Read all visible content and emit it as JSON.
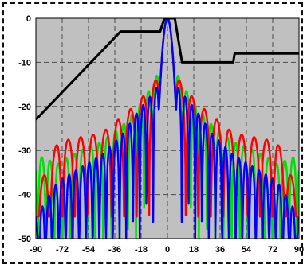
{
  "chart_data": {
    "type": "line",
    "title": "",
    "xlabel": "",
    "ylabel": "",
    "xlim": [
      -90,
      90
    ],
    "ylim": [
      -50,
      0
    ],
    "xticks": [
      -90,
      -72,
      -54,
      -36,
      -18,
      0,
      18,
      36,
      54,
      72,
      90
    ],
    "yticks": [
      0,
      -10,
      -20,
      -30,
      -40,
      -50
    ],
    "xtick_labels": [
      "-90",
      "-72",
      "-54",
      "-36",
      "-18",
      "0",
      "18",
      "36",
      "54",
      "72",
      "90"
    ],
    "ytick_labels": [
      "0",
      "-10",
      "-20",
      "-30",
      "-40",
      "-50"
    ],
    "grid": true,
    "legend": "none",
    "background": "#c0c0c0",
    "series": [
      {
        "color": "#000000",
        "x": [
          -90,
          -32,
          -5,
          -2,
          2,
          5,
          10,
          45,
          46,
          90
        ],
        "y": [
          -23,
          -3,
          -3,
          0,
          0,
          0,
          -10,
          -10,
          -8,
          -8
        ]
      },
      {
        "color": "#00e000",
        "sidelobe_envelope": {
          "x": [
            -90,
            -75,
            -60,
            -45,
            -30,
            -20,
            -10,
            -6,
            0,
            6,
            10,
            20,
            30,
            45,
            60,
            75,
            90
          ],
          "y": [
            -31,
            -33,
            -30,
            -28,
            -24,
            -20,
            -15,
            -12,
            0,
            -12,
            -15,
            -20,
            -24,
            -28,
            -30,
            -33,
            -31
          ]
        },
        "notch_depth_db": -50
      },
      {
        "color": "#ff0000",
        "sidelobe_envelope": {
          "x": [
            -90,
            -75,
            -60,
            -45,
            -30,
            -20,
            -10,
            -6,
            0,
            6,
            10,
            20,
            30,
            45,
            60,
            75,
            90
          ],
          "y": [
            -40,
            -28,
            -27,
            -26,
            -22,
            -19,
            -15,
            -13,
            0,
            -13,
            -15,
            -19,
            -22,
            -26,
            -27,
            -28,
            -40
          ]
        },
        "notch_depth_db": -45
      },
      {
        "color": "#0000ff",
        "sidelobe_envelope": {
          "x": [
            -90,
            -75,
            -60,
            -45,
            -30,
            -20,
            -10,
            -6,
            0,
            6,
            10,
            20,
            30,
            45,
            60,
            75,
            90
          ],
          "y": [
            -45,
            -37,
            -34,
            -31,
            -26,
            -21,
            -17,
            -15,
            0,
            -15,
            -17,
            -21,
            -26,
            -31,
            -34,
            -37,
            -45
          ]
        },
        "notch_depth_db": -50
      }
    ]
  }
}
